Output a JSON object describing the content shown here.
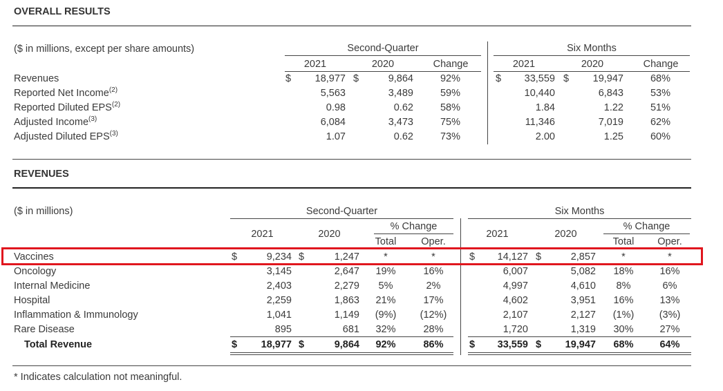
{
  "overall": {
    "title": "OVERALL RESULTS",
    "units": "($ in millions, except per share amounts)",
    "group_q": "Second-Quarter",
    "group_six": "Six Months",
    "col_2021": "2021",
    "col_2020": "2020",
    "col_change": "Change",
    "rows": [
      {
        "label": "Revenues",
        "sup": "",
        "q_cur_sign": "$",
        "q2021": "18,977",
        "q_prev_sign": "$",
        "q2020": "9,864",
        "qchg": "92%",
        "s_cur_sign": "$",
        "s2021": "33,559",
        "s_prev_sign": "$",
        "s2020": "19,947",
        "schg": "68%"
      },
      {
        "label": "Reported Net Income",
        "sup": "(2)",
        "q_cur_sign": "",
        "q2021": "5,563",
        "q_prev_sign": "",
        "q2020": "3,489",
        "qchg": "59%",
        "s_cur_sign": "",
        "s2021": "10,440",
        "s_prev_sign": "",
        "s2020": "6,843",
        "schg": "53%"
      },
      {
        "label": "Reported Diluted EPS",
        "sup": "(2)",
        "q_cur_sign": "",
        "q2021": "0.98",
        "q_prev_sign": "",
        "q2020": "0.62",
        "qchg": "58%",
        "s_cur_sign": "",
        "s2021": "1.84",
        "s_prev_sign": "",
        "s2020": "1.22",
        "schg": "51%"
      },
      {
        "label": "Adjusted Income",
        "sup": "(3)",
        "q_cur_sign": "",
        "q2021": "6,084",
        "q_prev_sign": "",
        "q2020": "3,473",
        "qchg": "75%",
        "s_cur_sign": "",
        "s2021": "11,346",
        "s_prev_sign": "",
        "s2020": "7,019",
        "schg": "62%"
      },
      {
        "label": "Adjusted Diluted EPS",
        "sup": "(3)",
        "q_cur_sign": "",
        "q2021": "1.07",
        "q_prev_sign": "",
        "q2020": "0.62",
        "qchg": "73%",
        "s_cur_sign": "",
        "s2021": "2.00",
        "s_prev_sign": "",
        "s2020": "1.25",
        "schg": "60%"
      }
    ]
  },
  "revenues": {
    "title": "REVENUES",
    "units": "($ in millions)",
    "group_q": "Second-Quarter",
    "group_six": "Six Months",
    "col_2021": "2021",
    "col_2020": "2020",
    "pct_change": "% Change",
    "total": "Total",
    "oper": "Oper.",
    "rows": [
      {
        "label": "Vaccines",
        "q_cur_sign": "$",
        "q2021": "9,234",
        "q_prev_sign": "$",
        "q2020": "1,247",
        "qtot": "*",
        "qop": "*",
        "s_cur_sign": "$",
        "s2021": "14,127",
        "s_prev_sign": "$",
        "s2020": "2,857",
        "stot": "*",
        "sop": "*"
      },
      {
        "label": "Oncology",
        "q_cur_sign": "",
        "q2021": "3,145",
        "q_prev_sign": "",
        "q2020": "2,647",
        "qtot": "19%",
        "qop": "16%",
        "s_cur_sign": "",
        "s2021": "6,007",
        "s_prev_sign": "",
        "s2020": "5,082",
        "stot": "18%",
        "sop": "16%"
      },
      {
        "label": "Internal Medicine",
        "q_cur_sign": "",
        "q2021": "2,403",
        "q_prev_sign": "",
        "q2020": "2,279",
        "qtot": "5%",
        "qop": "2%",
        "s_cur_sign": "",
        "s2021": "4,997",
        "s_prev_sign": "",
        "s2020": "4,610",
        "stot": "8%",
        "sop": "6%"
      },
      {
        "label": "Hospital",
        "q_cur_sign": "",
        "q2021": "2,259",
        "q_prev_sign": "",
        "q2020": "1,863",
        "qtot": "21%",
        "qop": "17%",
        "s_cur_sign": "",
        "s2021": "4,602",
        "s_prev_sign": "",
        "s2020": "3,951",
        "stot": "16%",
        "sop": "13%"
      },
      {
        "label": "Inflammation & Immunology",
        "q_cur_sign": "",
        "q2021": "1,041",
        "q_prev_sign": "",
        "q2020": "1,149",
        "qtot": "(9%)",
        "qop": "(12%)",
        "s_cur_sign": "",
        "s2021": "2,107",
        "s_prev_sign": "",
        "s2020": "2,127",
        "stot": "(1%)",
        "sop": "(3%)"
      },
      {
        "label": "Rare Disease",
        "q_cur_sign": "",
        "q2021": "895",
        "q_prev_sign": "",
        "q2020": "681",
        "qtot": "32%",
        "qop": "28%",
        "s_cur_sign": "",
        "s2021": "1,720",
        "s_prev_sign": "",
        "s2020": "1,319",
        "stot": "30%",
        "sop": "27%"
      }
    ],
    "total_row": {
      "label": "Total Revenue",
      "q_cur_sign": "$",
      "q2021": "18,977",
      "q_prev_sign": "$",
      "q2020": "9,864",
      "qtot": "92%",
      "qop": "86%",
      "s_cur_sign": "$",
      "s2021": "33,559",
      "s_prev_sign": "$",
      "s2020": "19,947",
      "stot": "68%",
      "sop": "64%"
    }
  },
  "footnote": "* Indicates calculation not meaningful.",
  "colors": {
    "highlight": "#e0161e",
    "rule": "#222222",
    "text": "#3a3a3a"
  }
}
